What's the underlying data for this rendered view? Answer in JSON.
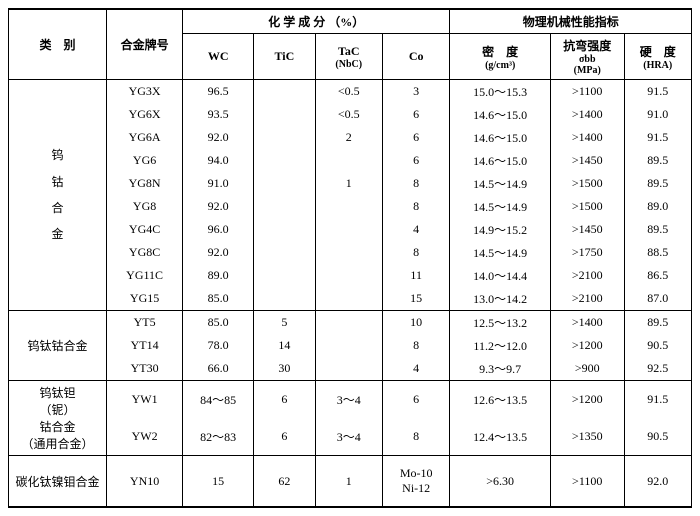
{
  "headers": {
    "category": "类　别",
    "grade": "合金牌号",
    "chem": "化 学 成 分 （%）",
    "wc": "WC",
    "tic": "TiC",
    "tac": "TaC",
    "tac_sub": "(NbC)",
    "co": "Co",
    "phys": "物理机械性能指标",
    "density": "密　度",
    "density_sub": "(g/cm³)",
    "bend": "抗弯强度",
    "bend_sym": "σbb",
    "bend_sub": "(MPa)",
    "hard": "硬　度",
    "hard_sub": "(HRA)"
  },
  "cat1": "钨钴合金",
  "cat2": "钨钛钴合金",
  "cat3a": "钨钛钽",
  "cat3b": "（铌）",
  "cat3c": "钴合金",
  "cat3d": "（通用合金）",
  "cat4": "碳化钛镍钼合金",
  "r": [
    {
      "g": "YG3X",
      "wc": "96.5",
      "tic": "",
      "tac": "<0.5",
      "co": "3",
      "d": "15.0～15.3",
      "b": ">1100",
      "h": "91.5"
    },
    {
      "g": "YG6X",
      "wc": "93.5",
      "tic": "",
      "tac": "<0.5",
      "co": "6",
      "d": "14.6～15.0",
      "b": ">1400",
      "h": "91.0"
    },
    {
      "g": "YG6A",
      "wc": "92.0",
      "tic": "",
      "tac": "2",
      "co": "6",
      "d": "14.6～15.0",
      "b": ">1400",
      "h": "91.5"
    },
    {
      "g": "YG6",
      "wc": "94.0",
      "tic": "",
      "tac": "",
      "co": "6",
      "d": "14.6～15.0",
      "b": ">1450",
      "h": "89.5"
    },
    {
      "g": "YG8N",
      "wc": "91.0",
      "tic": "",
      "tac": "1",
      "co": "8",
      "d": "14.5～14.9",
      "b": ">1500",
      "h": "89.5"
    },
    {
      "g": "YG8",
      "wc": "92.0",
      "tic": "",
      "tac": "",
      "co": "8",
      "d": "14.5～14.9",
      "b": ">1500",
      "h": "89.0"
    },
    {
      "g": "YG4C",
      "wc": "96.0",
      "tic": "",
      "tac": "",
      "co": "4",
      "d": "14.9～15.2",
      "b": ">1450",
      "h": "89.5"
    },
    {
      "g": "YG8C",
      "wc": "92.0",
      "tic": "",
      "tac": "",
      "co": "8",
      "d": "14.5～14.9",
      "b": ">1750",
      "h": "88.5"
    },
    {
      "g": "YG11C",
      "wc": "89.0",
      "tic": "",
      "tac": "",
      "co": "11",
      "d": "14.0～14.4",
      "b": ">2100",
      "h": "86.5"
    },
    {
      "g": "YG15",
      "wc": "85.0",
      "tic": "",
      "tac": "",
      "co": "15",
      "d": "13.0～14.2",
      "b": ">2100",
      "h": "87.0"
    },
    {
      "g": "YT5",
      "wc": "85.0",
      "tic": "5",
      "tac": "",
      "co": "10",
      "d": "12.5～13.2",
      "b": ">1400",
      "h": "89.5"
    },
    {
      "g": "YT14",
      "wc": "78.0",
      "tic": "14",
      "tac": "",
      "co": "8",
      "d": "11.2～12.0",
      "b": ">1200",
      "h": "90.5"
    },
    {
      "g": "YT30",
      "wc": "66.0",
      "tic": "30",
      "tac": "",
      "co": "4",
      "d": "9.3～9.7",
      "b": ">900",
      "h": "92.5"
    },
    {
      "g": "YW1",
      "wc": "84～85",
      "tic": "6",
      "tac": "3～4",
      "co": "6",
      "d": "12.6～13.5",
      "b": ">1200",
      "h": "91.5"
    },
    {
      "g": "YW2",
      "wc": "82～83",
      "tic": "6",
      "tac": "3～4",
      "co": "8",
      "d": "12.4～13.5",
      "b": ">1350",
      "h": "90.5"
    },
    {
      "g": "YN10",
      "wc": "15",
      "tic": "62",
      "tac": "1",
      "co": "Mo-10\nNi-12",
      "d": ">6.30",
      "b": ">1100",
      "h": "92.0"
    }
  ]
}
